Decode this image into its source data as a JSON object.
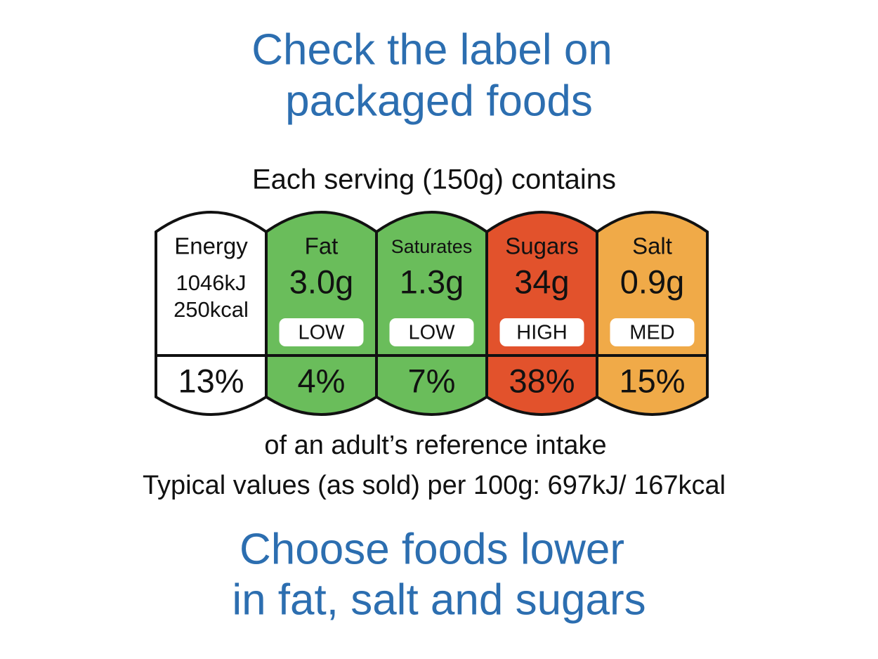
{
  "header": {
    "title_lines": [
      "Check the label on",
      "packaged foods"
    ],
    "serving": "Each serving (150g) contains"
  },
  "label": {
    "columns": [
      {
        "name": "Energy",
        "amounts": [
          "1046kJ",
          "250kcal"
        ],
        "percent": "13%",
        "color": "#ffffff"
      },
      {
        "name": "Fat",
        "amounts": [
          "3.0g"
        ],
        "level": "LOW",
        "percent": "4%",
        "color": "#6abd5b"
      },
      {
        "name": "Saturates",
        "amounts": [
          "1.3g"
        ],
        "level": "LOW",
        "percent": "7%",
        "color": "#6abd5b"
      },
      {
        "name": "Sugars",
        "amounts": [
          "34g"
        ],
        "level": "HIGH",
        "percent": "38%",
        "color": "#e2522c"
      },
      {
        "name": "Salt",
        "amounts": [
          "0.9g"
        ],
        "level": "MED",
        "percent": "15%",
        "color": "#f0aa48"
      }
    ]
  },
  "footer": {
    "reference": "of an adult’s reference intake",
    "typical": "Typical values (as sold) per 100g: 697kJ/ 167kcal",
    "advice_lines": [
      "Choose foods lower",
      "in fat, salt and sugars"
    ]
  }
}
